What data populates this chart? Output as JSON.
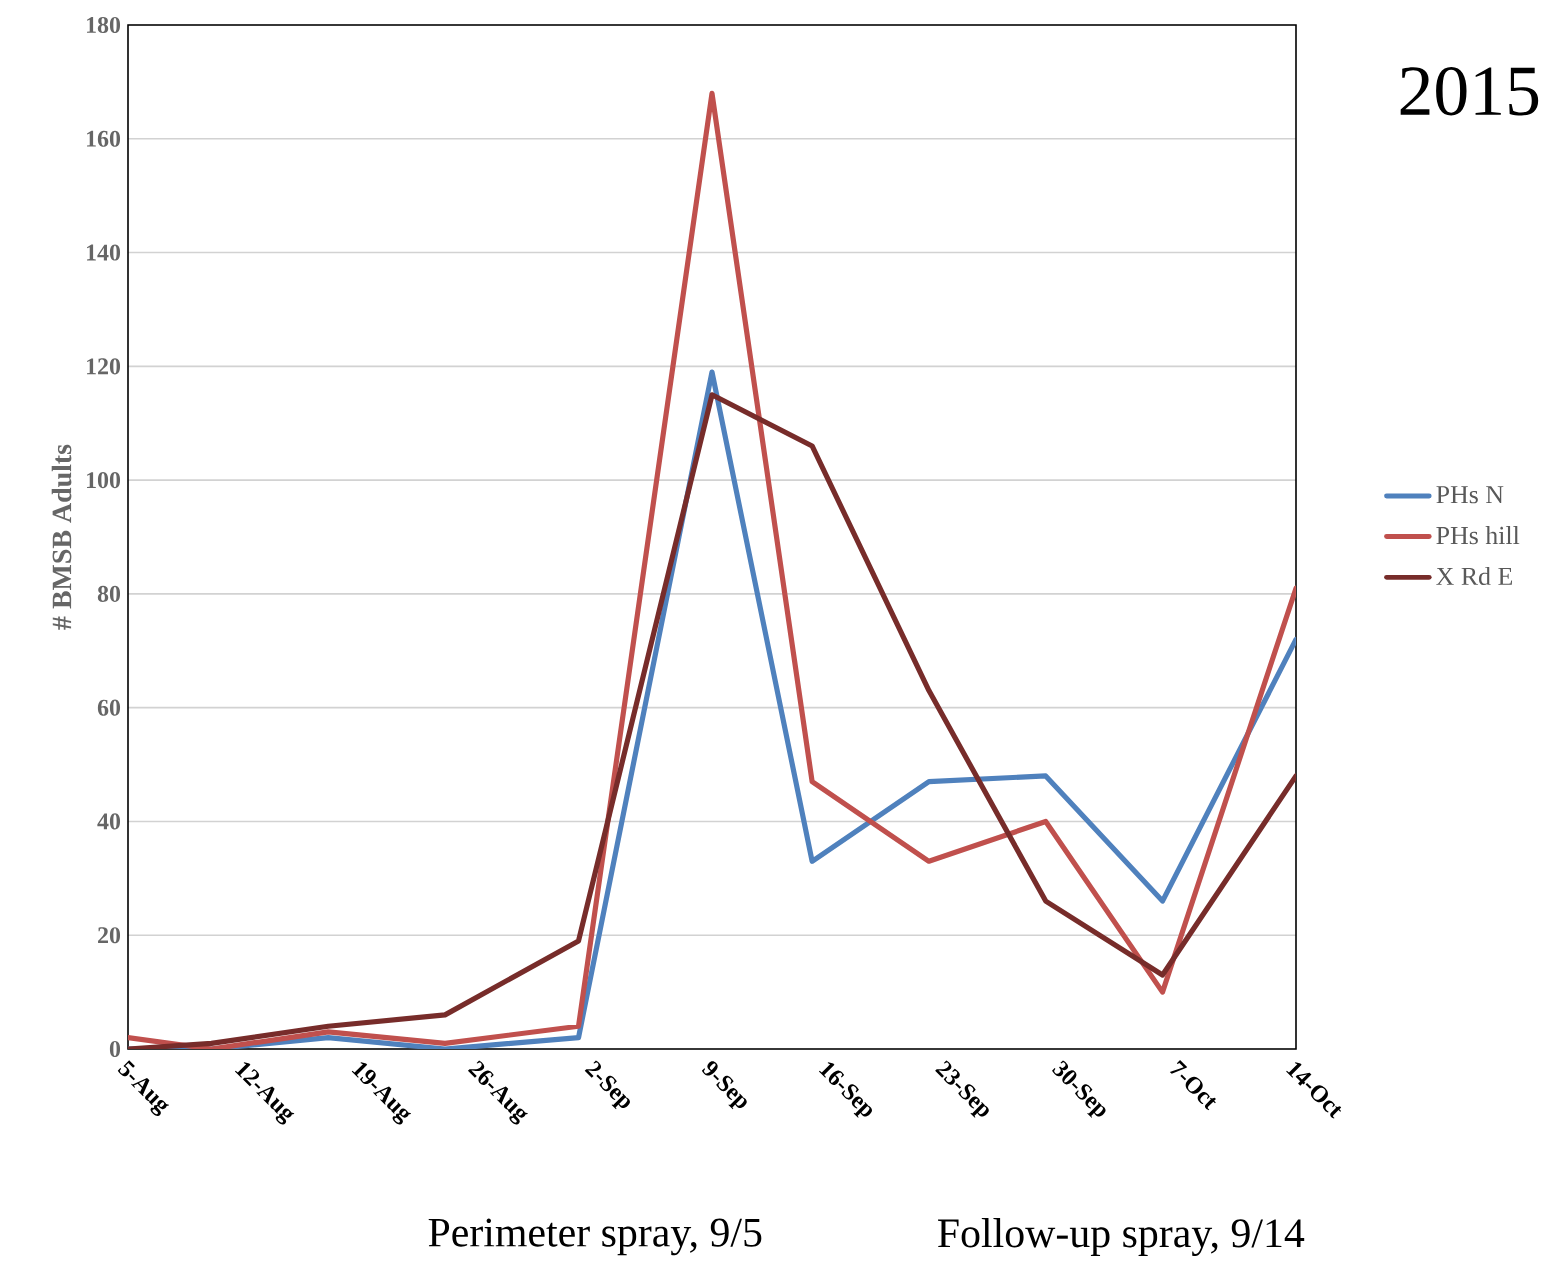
{
  "chart_data": {
    "type": "line",
    "title": "2015",
    "ylabel": "# BMSB Adults",
    "x": [
      "2015-08-05",
      "2015-08-10",
      "2015-08-17",
      "2015-08-24",
      "2015-09-01",
      "2015-09-09",
      "2015-09-15",
      "2015-09-22",
      "2015-09-29",
      "2015-10-06",
      "2015-10-14"
    ],
    "series": [
      {
        "name": "PHs N",
        "color": "#4f81bd",
        "values": [
          0,
          0,
          2,
          0,
          2,
          119,
          33,
          47,
          48,
          26,
          72
        ]
      },
      {
        "name": "PHs hill",
        "color": "#c0504d",
        "values": [
          2,
          0,
          3,
          1,
          4,
          168,
          47,
          33,
          40,
          10,
          81
        ]
      },
      {
        "name": "X Rd E",
        "color": "#772c2a",
        "values": [
          0,
          1,
          4,
          6,
          19,
          115,
          106,
          63,
          26,
          13,
          48
        ]
      }
    ],
    "xlim": [
      "2015-08-05",
      "2015-10-14"
    ],
    "xticks": [
      {
        "value": "2015-08-05",
        "label": "5-Aug"
      },
      {
        "value": "2015-08-12",
        "label": "12-Aug"
      },
      {
        "value": "2015-08-19",
        "label": "19-Aug"
      },
      {
        "value": "2015-08-26",
        "label": "26-Aug"
      },
      {
        "value": "2015-09-02",
        "label": "2-Sep"
      },
      {
        "value": "2015-09-09",
        "label": "9-Sep"
      },
      {
        "value": "2015-09-16",
        "label": "16-Sep"
      },
      {
        "value": "2015-09-23",
        "label": "23-Sep"
      },
      {
        "value": "2015-09-30",
        "label": "30-Sep"
      },
      {
        "value": "2015-10-07",
        "label": "7-Oct"
      },
      {
        "value": "2015-10-14",
        "label": "14-Oct"
      }
    ],
    "ylim": [
      0,
      180
    ],
    "yticks": [
      0,
      20,
      40,
      60,
      80,
      100,
      120,
      140,
      160,
      180
    ],
    "grid": "y",
    "legend": "right",
    "marker": "none",
    "line_style": "solid",
    "annotations": [
      "Perimeter spray, 9/5",
      "Follow-up spray, 9/14"
    ]
  }
}
